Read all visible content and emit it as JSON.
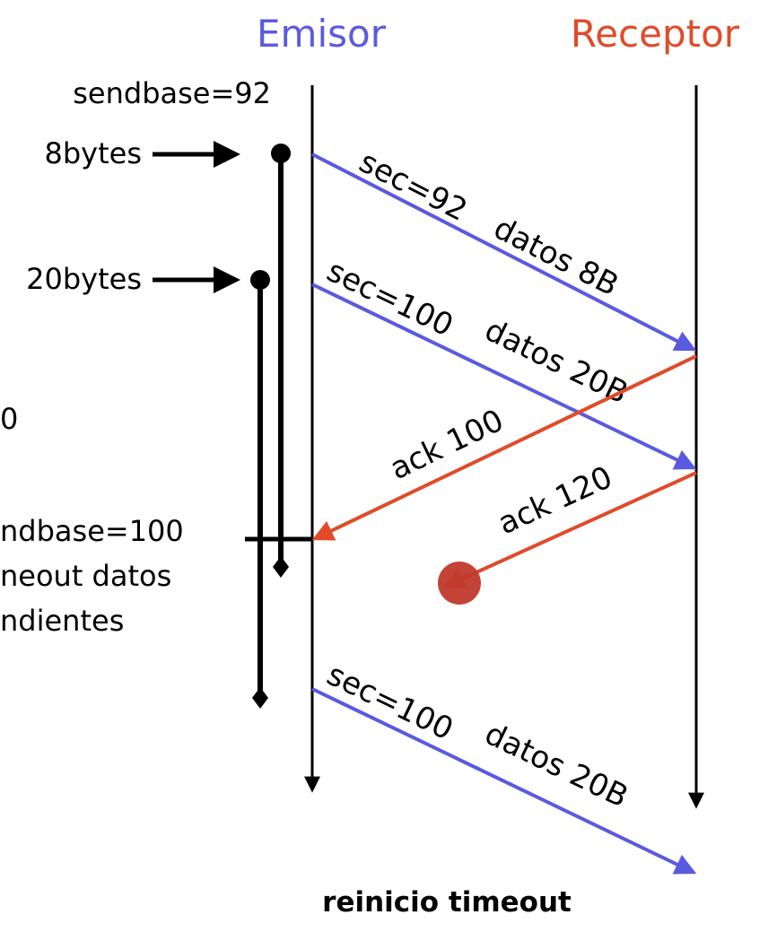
{
  "headers": {
    "sender": "Emisor",
    "receiver": "Receptor"
  },
  "left_labels": {
    "sendbase_initial": "sendbase=92",
    "bytes8": "8bytes",
    "bytes20": "20bytes",
    "cut_number": "0",
    "sendbase_update": "ndbase=100",
    "timeout_line1": "neout datos",
    "timeout_line2": "ndientes"
  },
  "messages": {
    "seg1": {
      "sec": "sec=92",
      "datos": "datos 8B"
    },
    "seg2": {
      "sec": "sec=100",
      "datos": "datos 20B"
    },
    "ack1": "ack 100",
    "ack2": "ack 120",
    "seg3": {
      "sec": "sec=100",
      "datos": "datos 20B"
    }
  },
  "footer": "reinicio timeout",
  "colors": {
    "sender": "#5a5ae0",
    "receiver": "#e04b2a",
    "segment": "#5a5ae0",
    "ack": "#e04b2a",
    "lost": "#c0392b"
  }
}
